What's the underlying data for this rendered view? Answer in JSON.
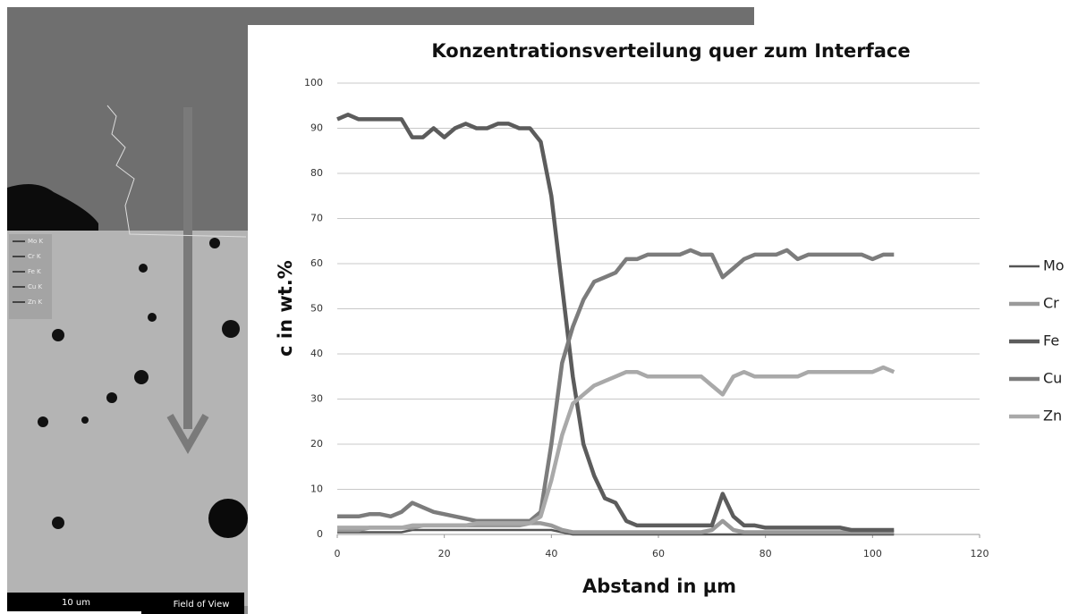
{
  "chart_data": {
    "type": "line",
    "title": "Konzentrationsverteilung quer zum Interface",
    "x_label": "Abstand in µm",
    "y_label": "c in wt.%",
    "x": [
      0,
      2,
      4,
      6,
      8,
      10,
      12,
      14,
      16,
      18,
      20,
      22,
      24,
      26,
      28,
      30,
      32,
      34,
      36,
      38,
      40,
      42,
      44,
      46,
      48,
      50,
      52,
      54,
      56,
      58,
      60,
      62,
      64,
      66,
      68,
      70,
      72,
      74,
      76,
      78,
      80,
      82,
      84,
      86,
      88,
      90,
      92,
      94,
      96,
      98,
      100,
      102,
      104
    ],
    "series": [
      {
        "name": "Mo",
        "color": "#555555",
        "values": [
          0.5,
          0.5,
          0.5,
          0.5,
          0.5,
          0.5,
          0.5,
          1,
          1,
          1,
          1,
          1,
          1,
          1,
          1,
          1,
          1,
          1,
          1,
          1,
          1,
          0.5,
          0,
          0,
          0,
          0,
          0,
          0,
          0,
          0,
          0,
          0,
          0,
          0,
          0,
          0,
          0,
          0,
          0,
          0,
          0,
          0,
          0,
          0,
          0,
          0,
          0,
          0,
          0,
          0,
          0,
          0,
          0
        ]
      },
      {
        "name": "Cr",
        "color": "#9a9a9a",
        "values": [
          1,
          1,
          1,
          1.5,
          1.5,
          1.5,
          1.5,
          1.5,
          2,
          2,
          2,
          2,
          2,
          2,
          2,
          2,
          2,
          2,
          2.5,
          2.5,
          2,
          1,
          0.5,
          0.5,
          0.5,
          0.5,
          0.5,
          0.5,
          0.5,
          0.5,
          0.5,
          0.5,
          0.5,
          0.5,
          0.5,
          1,
          3,
          1,
          0.5,
          0.5,
          0.5,
          0.5,
          0.5,
          0.5,
          0.5,
          0.5,
          0.5,
          0.5,
          0.5,
          0.5,
          0.5,
          0.5,
          0.5
        ]
      },
      {
        "name": "Fe",
        "color": "#5c5c5c",
        "values": [
          92,
          93,
          92,
          92,
          92,
          92,
          92,
          88,
          88,
          90,
          88,
          90,
          91,
          90,
          90,
          91,
          91,
          90,
          90,
          87,
          75,
          55,
          35,
          20,
          13,
          8,
          7,
          3,
          2,
          2,
          2,
          2,
          2,
          2,
          2,
          2,
          9,
          4,
          2,
          2,
          1.5,
          1.5,
          1.5,
          1.5,
          1.5,
          1.5,
          1.5,
          1.5,
          1,
          1,
          1,
          1,
          1
        ]
      },
      {
        "name": "Cu",
        "color": "#7c7c7c",
        "values": [
          4,
          4,
          4,
          4.5,
          4.5,
          4,
          5,
          7,
          6,
          5,
          4.5,
          4,
          3.5,
          3,
          3,
          3,
          3,
          3,
          3,
          5,
          20,
          38,
          46,
          52,
          56,
          57,
          58,
          61,
          61,
          62,
          62,
          62,
          62,
          63,
          62,
          62,
          57,
          59,
          61,
          62,
          62,
          62,
          63,
          61,
          62,
          62,
          62,
          62,
          62,
          62,
          61,
          62,
          62
        ]
      },
      {
        "name": "Zn",
        "color": "#a9a9a9",
        "values": [
          1.5,
          1.5,
          1.5,
          1.5,
          1.5,
          1.5,
          1.5,
          2,
          2,
          2,
          2,
          2,
          2,
          2.5,
          2.5,
          2.5,
          2.5,
          2.5,
          2.5,
          4,
          12,
          22,
          29,
          31,
          33,
          34,
          35,
          36,
          36,
          35,
          35,
          35,
          35,
          35,
          35,
          33,
          31,
          35,
          36,
          35,
          35,
          35,
          35,
          35,
          36,
          36,
          36,
          36,
          36,
          36,
          36,
          37,
          36
        ]
      }
    ],
    "xlim": [
      0,
      120
    ],
    "xticks": [
      0,
      20,
      40,
      60,
      80,
      100,
      120
    ],
    "ylim": [
      0,
      100
    ],
    "yticks": [
      0,
      10,
      20,
      30,
      40,
      50,
      60,
      70,
      80,
      90,
      100
    ],
    "grid": true,
    "legend": "right"
  },
  "image": {
    "scale_bar": "10 um",
    "caption": "Field of View",
    "legend": [
      "Mo K",
      "Cr K",
      "Fe K",
      "Cu K",
      "Zn K"
    ]
  }
}
